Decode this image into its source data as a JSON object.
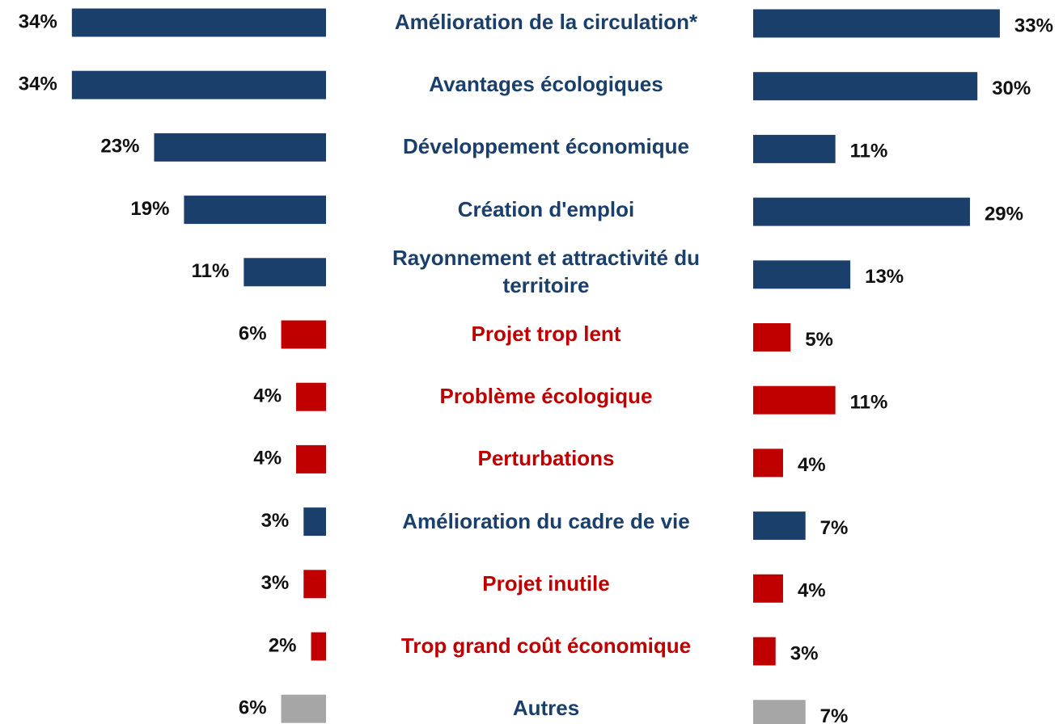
{
  "chart_data": {
    "type": "butterfly",
    "categories": [
      "Amélioration de la circulation*",
      "Avantages écologiques",
      "Développement économique",
      "Création d'emploi",
      "Rayonnement et attractivité du territoire",
      "Projet trop lent",
      "Problème écologique",
      "Perturbations",
      "Amélioration du cadre de vie",
      "Projet inutile",
      "Trop grand coût économique",
      "Autres"
    ],
    "colors": [
      "#1a3f6b",
      "#1a3f6b",
      "#1a3f6b",
      "#1a3f6b",
      "#1a3f6b",
      "#c00000",
      "#c00000",
      "#c00000",
      "#1a3f6b",
      "#c00000",
      "#c00000",
      "#a6a6a6"
    ],
    "label_colors": [
      "#1a3f6b",
      "#1a3f6b",
      "#1a3f6b",
      "#1a3f6b",
      "#1a3f6b",
      "#c00000",
      "#c00000",
      "#c00000",
      "#1a3f6b",
      "#c00000",
      "#c00000",
      "#1a3f6b"
    ],
    "series": [
      {
        "values": [
          34,
          34,
          23,
          19,
          11,
          6,
          4,
          4,
          3,
          3,
          2,
          6
        ],
        "value_labels": [
          "34%",
          "34%",
          "23%",
          "19%",
          "11%",
          "6%",
          "4%",
          "4%",
          "3%",
          "3%",
          "2%",
          "6%"
        ]
      },
      {
        "values": [
          33,
          30,
          11,
          29,
          13,
          5,
          11,
          4,
          7,
          4,
          3,
          7
        ],
        "value_labels": [
          "33%",
          "30%",
          "11%",
          "29%",
          "13%",
          "5%",
          "11%",
          "4%",
          "7%",
          "4%",
          "3%",
          "7%"
        ]
      }
    ]
  }
}
